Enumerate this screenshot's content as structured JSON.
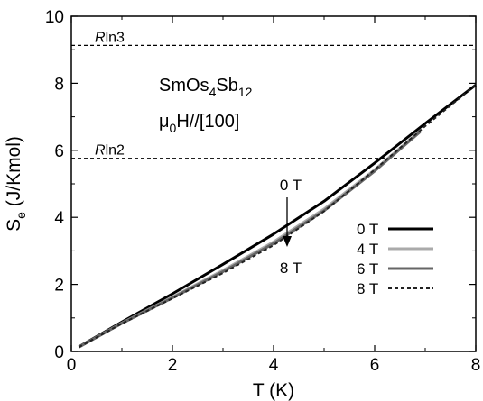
{
  "chart_data": {
    "type": "line",
    "xlabel": "T (K)",
    "ylabel": "Se (J/Kmol)",
    "ylabel_main": "S",
    "ylabel_sub": "e",
    "ylabel_rest": " (J/Kmol)",
    "xlim": [
      0,
      8
    ],
    "ylim": [
      0,
      10
    ],
    "x_ticks": [
      0,
      2,
      4,
      6,
      8
    ],
    "y_ticks": [
      0,
      2,
      4,
      6,
      8,
      10
    ],
    "grid": false,
    "legend_position": "right",
    "reference_lines": [
      {
        "label": "Rln3",
        "label_italic": "R",
        "label_rest": "ln3",
        "value": 9.13,
        "style": "dashed"
      },
      {
        "label": "Rln2",
        "label_italic": "R",
        "label_rest": "ln2",
        "value": 5.76,
        "style": "dashed"
      }
    ],
    "annotations": {
      "compound": {
        "base1": "SmOs",
        "sub1": "4",
        "base2": "Sb",
        "sub2": "12"
      },
      "field_direction": {
        "mu": "μ",
        "sub": "0",
        "rest": "H//[100]"
      },
      "arrow_top": "0 T",
      "arrow_bottom": "8 T"
    },
    "series": [
      {
        "name": "0 T",
        "color": "#000000",
        "dash": "solid",
        "x": [
          0.15,
          1,
          2,
          3,
          4,
          5,
          6,
          7,
          8
        ],
        "y": [
          0.14,
          0.88,
          1.72,
          2.6,
          3.5,
          4.48,
          5.62,
          6.8,
          7.95
        ]
      },
      {
        "name": "4 T",
        "color": "#aaaaaa",
        "dash": "solid",
        "x": [
          0.15,
          1,
          2,
          3,
          4,
          5,
          6,
          6.9
        ],
        "y": [
          0.13,
          0.85,
          1.62,
          2.42,
          3.27,
          4.25,
          5.42,
          6.58
        ]
      },
      {
        "name": "6 T",
        "color": "#666666",
        "dash": "solid",
        "x": [
          0.15,
          1,
          2,
          3,
          4,
          5,
          6,
          6.9
        ],
        "y": [
          0.13,
          0.84,
          1.6,
          2.38,
          3.22,
          4.2,
          5.38,
          6.55
        ]
      },
      {
        "name": "8 T",
        "color": "#222222",
        "dash": "dashed",
        "x": [
          0.15,
          1,
          2,
          3,
          4,
          5,
          6,
          7,
          8
        ],
        "y": [
          0.13,
          0.83,
          1.58,
          2.34,
          3.17,
          4.18,
          5.42,
          6.72,
          7.95
        ]
      }
    ]
  }
}
